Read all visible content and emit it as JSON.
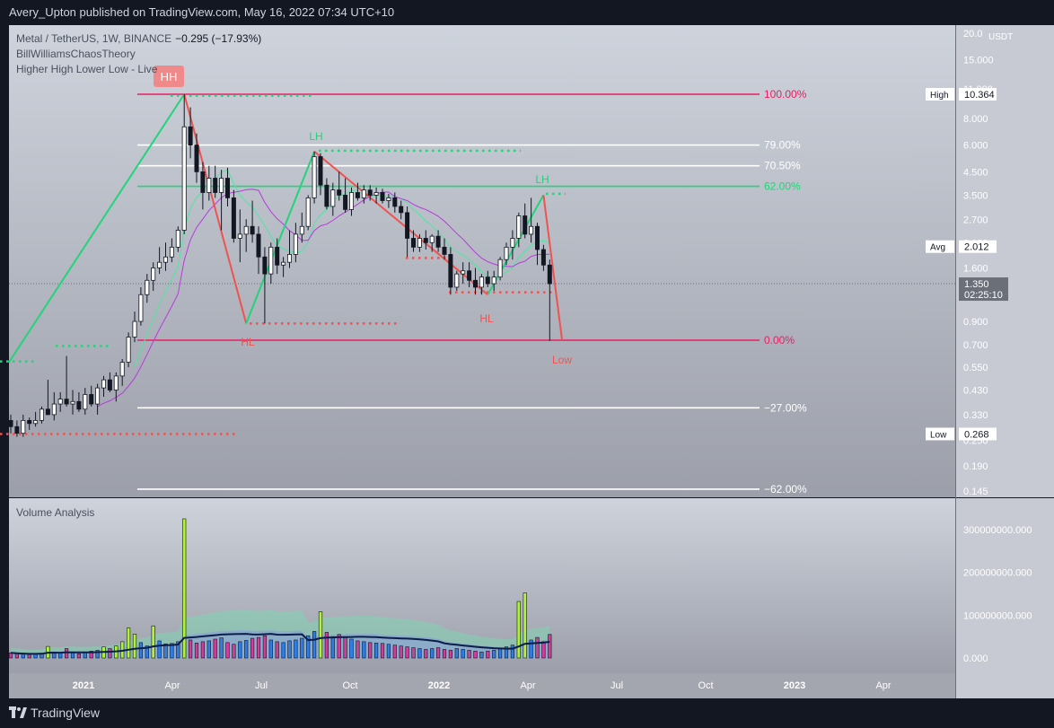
{
  "header": {
    "publisher_line": "Avery_Upton published on TradingView.com, May 16, 2022 07:34 UTC+10"
  },
  "footer": {
    "brand": "TradingView"
  },
  "legend": {
    "symbol": "Metal / TetherUS, 1W, BINANCE",
    "change": "−0.295 (−17.93%)",
    "indicator1": "BillWilliamsChaosTheory",
    "indicator2": "Higher High Lower Low - Live"
  },
  "volume_pane": {
    "title": "Volume Analysis"
  },
  "colors": {
    "up": "#ffffff",
    "down": "#131722",
    "bull": "#22d47a",
    "bear": "#ef5350",
    "fib_red": "#e91e63",
    "bg_top": "#ced3dc",
    "bg_bottom": "#9c9fa9"
  },
  "chart_data": {
    "type": "candlestick",
    "price_axis": {
      "unit": "USDT",
      "scale": "log",
      "ticks": [
        "20.0",
        "15.000",
        "11.000",
        "8.000",
        "6.000",
        "4.500",
        "3.500",
        "2.700",
        "2.100",
        "1.600",
        "1.350",
        "0.900",
        "0.700",
        "0.550",
        "0.430",
        "0.330",
        "0.250",
        "0.190",
        "0.145"
      ]
    },
    "time_axis": [
      "2021",
      "Apr",
      "Jul",
      "Oct",
      "2022",
      "Apr",
      "Jul",
      "Oct",
      "2023",
      "Apr"
    ],
    "price_labels": {
      "high_label": "High",
      "high_value": "10.364",
      "avg_label": "Avg",
      "avg_value": "2.012",
      "last_value": "1.350",
      "countdown": "02:25:10",
      "low_label": "Low",
      "low_value": "0.268"
    },
    "fib_levels": [
      {
        "label": "100.00%",
        "price": 10.364
      },
      {
        "label": "79.00%",
        "price": 6.0
      },
      {
        "label": "70.50%",
        "price": 4.8
      },
      {
        "label": "62.00%",
        "price": 3.85
      },
      {
        "label": "0.00%",
        "price": 0.735
      },
      {
        "label": "−27.00%",
        "price": 0.355
      },
      {
        "label": "−62.00%",
        "price": 0.148
      }
    ],
    "swing_labels": [
      "HH",
      "LH",
      "LH",
      "HL",
      "HL",
      "Low"
    ],
    "candles": [
      [
        0.31,
        0.33,
        0.27,
        0.29
      ],
      [
        0.29,
        0.31,
        0.26,
        0.27
      ],
      [
        0.27,
        0.33,
        0.26,
        0.31
      ],
      [
        0.31,
        0.32,
        0.28,
        0.3
      ],
      [
        0.3,
        0.34,
        0.29,
        0.31
      ],
      [
        0.31,
        0.36,
        0.3,
        0.35
      ],
      [
        0.35,
        0.48,
        0.33,
        0.33
      ],
      [
        0.33,
        0.42,
        0.31,
        0.37
      ],
      [
        0.37,
        0.42,
        0.34,
        0.39
      ],
      [
        0.39,
        0.62,
        0.36,
        0.37
      ],
      [
        0.37,
        0.43,
        0.33,
        0.38
      ],
      [
        0.38,
        0.42,
        0.34,
        0.35
      ],
      [
        0.35,
        0.44,
        0.33,
        0.41
      ],
      [
        0.41,
        0.45,
        0.36,
        0.37
      ],
      [
        0.37,
        0.46,
        0.33,
        0.44
      ],
      [
        0.44,
        0.5,
        0.4,
        0.48
      ],
      [
        0.48,
        0.52,
        0.42,
        0.43
      ],
      [
        0.43,
        0.52,
        0.38,
        0.5
      ],
      [
        0.5,
        0.6,
        0.45,
        0.58
      ],
      [
        0.58,
        0.8,
        0.55,
        0.76
      ],
      [
        0.76,
        1.0,
        0.72,
        0.9
      ],
      [
        0.9,
        1.3,
        0.86,
        1.2
      ],
      [
        1.2,
        1.5,
        1.1,
        1.4
      ],
      [
        1.4,
        1.7,
        1.25,
        1.6
      ],
      [
        1.6,
        2.0,
        1.5,
        1.7
      ],
      [
        1.7,
        2.1,
        1.55,
        1.8
      ],
      [
        1.8,
        2.2,
        1.7,
        2.0
      ],
      [
        2.0,
        2.5,
        1.9,
        2.4
      ],
      [
        2.4,
        10.364,
        2.3,
        7.3
      ],
      [
        7.3,
        9.0,
        5.2,
        6.0
      ],
      [
        6.0,
        6.8,
        4.0,
        4.5
      ],
      [
        4.5,
        5.0,
        3.0,
        3.6
      ],
      [
        3.6,
        4.8,
        3.3,
        4.2
      ],
      [
        4.2,
        4.8,
        3.4,
        3.6
      ],
      [
        3.6,
        4.6,
        2.4,
        4.2
      ],
      [
        4.2,
        4.7,
        3.1,
        3.4
      ],
      [
        3.4,
        3.7,
        2.1,
        2.2
      ],
      [
        2.2,
        3.0,
        1.7,
        2.3
      ],
      [
        2.3,
        2.7,
        1.9,
        2.5
      ],
      [
        2.5,
        3.3,
        2.1,
        2.3
      ],
      [
        2.3,
        2.5,
        1.5,
        1.8
      ],
      [
        1.8,
        2.0,
        0.88,
        1.5
      ],
      [
        1.5,
        2.1,
        1.35,
        2.0
      ],
      [
        2.0,
        2.2,
        1.5,
        1.65
      ],
      [
        1.65,
        1.8,
        1.45,
        1.7
      ],
      [
        1.7,
        2.4,
        1.6,
        1.85
      ],
      [
        1.85,
        2.6,
        1.7,
        2.3
      ],
      [
        2.3,
        2.9,
        2.1,
        2.5
      ],
      [
        2.5,
        3.5,
        2.4,
        3.4
      ],
      [
        3.4,
        5.6,
        3.2,
        5.3
      ],
      [
        5.3,
        5.5,
        3.5,
        3.9
      ],
      [
        3.9,
        4.2,
        3.0,
        3.1
      ],
      [
        3.1,
        4.0,
        2.8,
        3.7
      ],
      [
        3.7,
        4.5,
        3.3,
        3.5
      ],
      [
        3.5,
        4.2,
        2.9,
        3.0
      ],
      [
        3.0,
        3.8,
        2.8,
        3.6
      ],
      [
        3.6,
        4.0,
        3.3,
        3.4
      ],
      [
        3.4,
        3.9,
        3.2,
        3.7
      ],
      [
        3.7,
        3.9,
        3.3,
        3.5
      ],
      [
        3.5,
        3.8,
        3.2,
        3.6
      ],
      [
        3.6,
        3.75,
        3.2,
        3.3
      ],
      [
        3.3,
        3.55,
        3.05,
        3.4
      ],
      [
        3.4,
        3.6,
        2.9,
        3.1
      ],
      [
        3.1,
        3.3,
        2.7,
        2.9
      ],
      [
        2.9,
        3.1,
        1.8,
        2.2
      ],
      [
        2.2,
        2.4,
        1.9,
        2.0
      ],
      [
        2.0,
        2.3,
        1.9,
        2.2
      ],
      [
        2.2,
        2.4,
        1.95,
        2.1
      ],
      [
        2.1,
        2.3,
        1.9,
        2.25
      ],
      [
        2.25,
        2.4,
        1.9,
        2.0
      ],
      [
        2.0,
        2.2,
        1.75,
        1.85
      ],
      [
        1.85,
        2.0,
        1.2,
        1.3
      ],
      [
        1.3,
        1.55,
        1.25,
        1.5
      ],
      [
        1.5,
        1.7,
        1.35,
        1.55
      ],
      [
        1.55,
        1.7,
        1.3,
        1.4
      ],
      [
        1.4,
        1.6,
        1.2,
        1.3
      ],
      [
        1.3,
        1.5,
        1.2,
        1.45
      ],
      [
        1.45,
        1.55,
        1.3,
        1.35
      ],
      [
        1.35,
        1.55,
        1.25,
        1.45
      ],
      [
        1.45,
        1.8,
        1.4,
        1.75
      ],
      [
        1.75,
        2.1,
        1.65,
        2.0
      ],
      [
        2.0,
        2.4,
        1.75,
        2.2
      ],
      [
        2.2,
        2.9,
        2.0,
        2.8
      ],
      [
        2.8,
        3.2,
        2.2,
        2.3
      ],
      [
        2.3,
        3.4,
        2.1,
        2.5
      ],
      [
        2.5,
        2.6,
        1.65,
        1.95
      ],
      [
        1.95,
        2.05,
        1.55,
        1.65
      ],
      [
        1.65,
        1.75,
        0.73,
        1.35
      ]
    ],
    "volume_axis": [
      "300000000.000",
      "200000000.000",
      "100000000.000",
      "0.000"
    ],
    "volumes": [
      12,
      10,
      9,
      8,
      9,
      11,
      27,
      14,
      12,
      22,
      12,
      10,
      13,
      16,
      18,
      26,
      22,
      28,
      38,
      70,
      56,
      36,
      28,
      75,
      40,
      33,
      34,
      38,
      325,
      42,
      35,
      38,
      40,
      44,
      47,
      36,
      32,
      38,
      41,
      46,
      48,
      52,
      42,
      38,
      36,
      40,
      42,
      46,
      52,
      62,
      108,
      60,
      50,
      55,
      48,
      44,
      40,
      38,
      36,
      35,
      34,
      32,
      30,
      28,
      26,
      24,
      22,
      20,
      22,
      24,
      20,
      18,
      22,
      20,
      18,
      16,
      14,
      16,
      18,
      22,
      26,
      30,
      132,
      152,
      42,
      48,
      38,
      55
    ]
  }
}
